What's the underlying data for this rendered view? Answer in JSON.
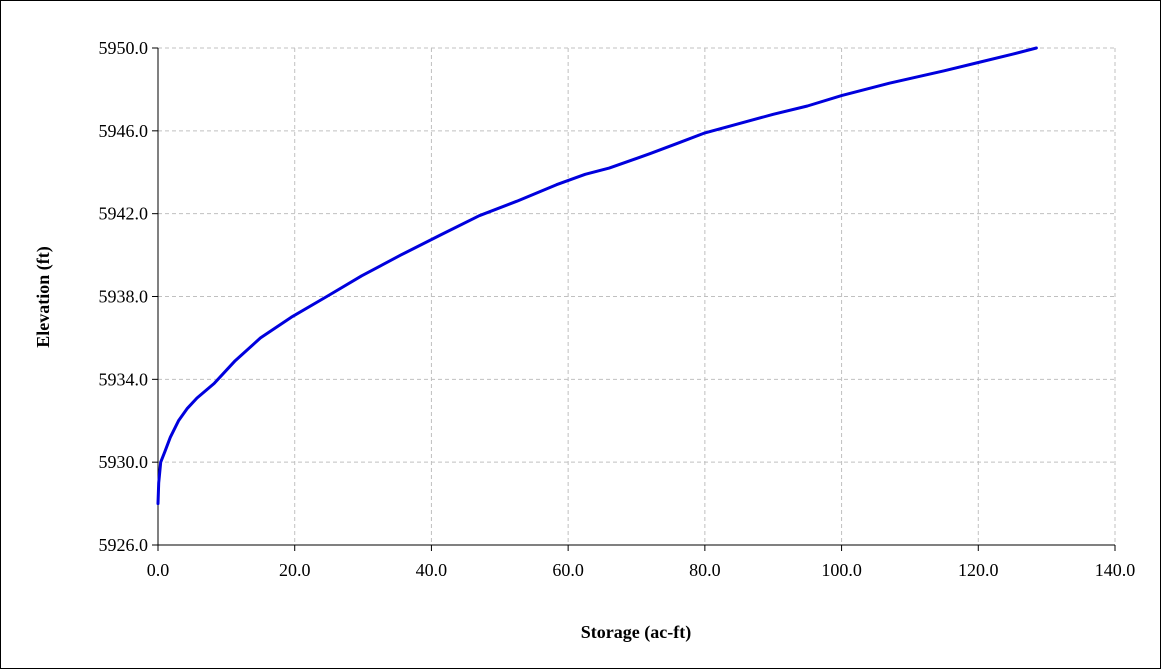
{
  "chart_data": {
    "type": "line",
    "xlabel": "Storage (ac-ft)",
    "ylabel": "Elevation (ft)",
    "xlim": [
      0,
      140
    ],
    "ylim": [
      5926,
      5950
    ],
    "x_ticks": [
      0,
      20,
      40,
      60,
      80,
      100,
      120,
      140
    ],
    "y_ticks": [
      5926,
      5930,
      5934,
      5938,
      5942,
      5946,
      5950
    ],
    "x_tick_labels": [
      "0.0",
      "20.0",
      "40.0",
      "60.0",
      "80.0",
      "100.0",
      "120.0",
      "140.0"
    ],
    "y_tick_labels": [
      "5926.0",
      "5930.0",
      "5934.0",
      "5938.0",
      "5942.0",
      "5946.0",
      "5950.0"
    ],
    "grid": true,
    "legend": "none",
    "series": [
      {
        "color": "#0000dd",
        "x": [
          0.0,
          0.1,
          0.4,
          1.0,
          1.8,
          3.0,
          4.3,
          5.7,
          8.2,
          11.3,
          15.0,
          19.5,
          24.7,
          29.8,
          35.5,
          41.5,
          47.0,
          52.5,
          58.3,
          62.5,
          66.0,
          72.0,
          76.0,
          80.0,
          84.5,
          90.0,
          95.0,
          100.0,
          107.0,
          115.0,
          120.0,
          125.0,
          128.5
        ],
        "y": [
          5928.0,
          5929.0,
          5930.0,
          5930.5,
          5931.2,
          5932.0,
          5932.6,
          5933.1,
          5933.8,
          5934.9,
          5936.0,
          5937.0,
          5938.0,
          5939.0,
          5940.0,
          5941.0,
          5941.9,
          5942.6,
          5943.4,
          5943.9,
          5944.2,
          5944.9,
          5945.4,
          5945.9,
          5946.3,
          5946.8,
          5947.2,
          5947.7,
          5948.3,
          5948.9,
          5949.3,
          5949.7,
          5950.0
        ]
      }
    ]
  }
}
